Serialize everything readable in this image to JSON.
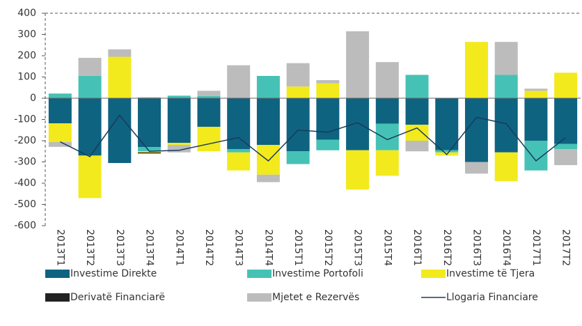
{
  "chart_data": {
    "type": "bar",
    "stacked": true,
    "categories": [
      "2013T1",
      "2013T2",
      "2013T3",
      "2013T4",
      "2014T1",
      "2014T2",
      "2014T3",
      "2014T4",
      "2015T1",
      "2015T2",
      "2015T3",
      "2015T4",
      "2016T1",
      "2016T2",
      "2016T3",
      "2016T4",
      "2017T1",
      "2017T2"
    ],
    "series": [
      {
        "name": "Investime Direkte",
        "color": "#0e6380",
        "values": [
          -118,
          -270,
          -305,
          -230,
          -210,
          -135,
          -240,
          -220,
          -250,
          -195,
          -245,
          -120,
          -125,
          -245,
          -300,
          -255,
          -200,
          -215
        ]
      },
      {
        "name": "Investime Portofoli",
        "color": "#45c2b5",
        "values": [
          22,
          105,
          0,
          -20,
          12,
          10,
          -15,
          105,
          -60,
          -50,
          0,
          -125,
          110,
          -10,
          0,
          110,
          -140,
          -25
        ]
      },
      {
        "name": "Investime të Tjera",
        "color": "#f2ea1c",
        "values": [
          -88,
          -200,
          195,
          -5,
          -10,
          -115,
          -85,
          -140,
          55,
          70,
          -185,
          -120,
          -75,
          -15,
          265,
          -135,
          35,
          120
        ]
      },
      {
        "name": "Derivatë Financiarë",
        "color": "#222222",
        "values": [
          0,
          0,
          0,
          -5,
          0,
          0,
          0,
          0,
          0,
          0,
          0,
          0,
          0,
          0,
          0,
          0,
          0,
          0
        ]
      },
      {
        "name": "Mjetet e Rezervës",
        "color": "#bcbcbc",
        "values": [
          -23,
          85,
          35,
          5,
          -35,
          25,
          155,
          -35,
          110,
          15,
          315,
          170,
          -50,
          0,
          -55,
          155,
          10,
          -75
        ]
      },
      {
        "name": "Llogaria Financiare",
        "color": "#1a3a5c",
        "type": "line",
        "values": [
          -205,
          -275,
          -80,
          -250,
          -245,
          -215,
          -185,
          -295,
          -150,
          -160,
          -115,
          -195,
          -140,
          -265,
          -90,
          -120,
          -295,
          -185
        ]
      }
    ],
    "ylim": [
      -600,
      400
    ],
    "yticks": [
      -600,
      -500,
      -400,
      -300,
      -200,
      -100,
      0,
      100,
      200,
      300,
      400
    ]
  }
}
